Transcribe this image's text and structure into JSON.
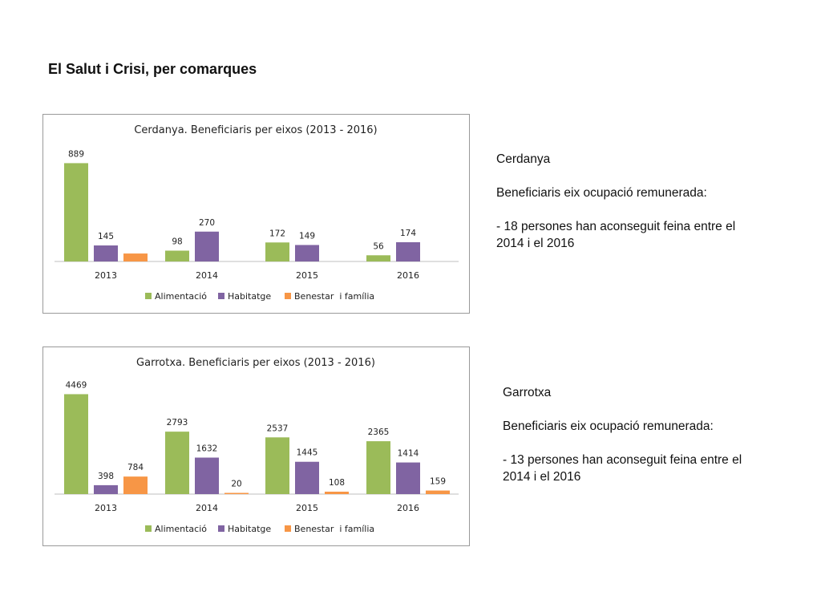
{
  "page": {
    "title": "El Salut i Crisi, per comarques"
  },
  "colors": {
    "alimentacio": "#9bbb59",
    "habitatge": "#8064a2",
    "benestar": "#f79646",
    "axis": "#bfbfbf"
  },
  "chart_data": [
    {
      "type": "bar",
      "title": "Cerdanya. Beneficiaris per eixos (2013 - 2016)",
      "categories": [
        "2013",
        "2014",
        "2015",
        "2016"
      ],
      "series": [
        {
          "name": "Alimentació",
          "values": [
            889,
            98,
            172,
            56
          ],
          "labels": [
            "889",
            "98",
            "172",
            "56"
          ]
        },
        {
          "name": "Habitatge",
          "values": [
            145,
            270,
            149,
            174
          ],
          "labels": [
            "145",
            "270",
            "149",
            "174"
          ]
        },
        {
          "name": "Benestar  i família",
          "values": [
            72,
            0,
            0,
            0
          ],
          "labels": [
            "",
            "",
            "",
            ""
          ]
        }
      ],
      "ylim": [
        0,
        950
      ],
      "grid": false,
      "legend": "bottom"
    },
    {
      "type": "bar",
      "title": "Garrotxa. Beneficiaris per eixos (2013 - 2016)",
      "categories": [
        "2013",
        "2014",
        "2015",
        "2016"
      ],
      "series": [
        {
          "name": "Alimentació",
          "values": [
            4469,
            2793,
            2537,
            2365
          ],
          "labels": [
            "4469",
            "2793",
            "2537",
            "2365"
          ]
        },
        {
          "name": "Habitatge",
          "values": [
            398,
            1632,
            1445,
            1414
          ],
          "labels": [
            "398",
            "1632",
            "1445",
            "1414"
          ]
        },
        {
          "name": "Benestar  i família",
          "values": [
            784,
            20,
            108,
            159
          ],
          "labels": [
            "784",
            "20",
            "108",
            "159"
          ]
        }
      ],
      "ylim": [
        0,
        4700
      ],
      "grid": false,
      "legend": "bottom"
    }
  ],
  "notes": [
    {
      "region": "Cerdanya",
      "heading": "Beneficiaris eix ocupació remunerada:",
      "line1": "- 18 persones han aconseguit feina entre el",
      "line2": "2014 i el 2016"
    },
    {
      "region": "Garrotxa",
      "heading": "Beneficiaris eix ocupació remunerada:",
      "line1": "- 13 persones han aconseguit feina entre el",
      "line2": "2014 i el 2016"
    }
  ]
}
